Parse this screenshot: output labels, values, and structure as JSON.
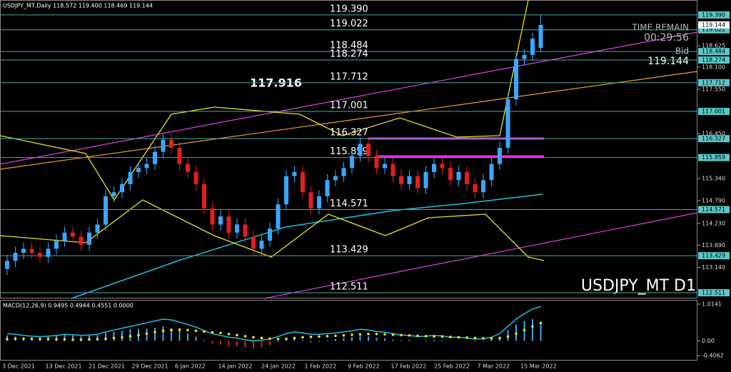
{
  "header": "USDJPY_MT,Daily  118.572 119.400 118.469 119.144",
  "price_scale": {
    "ylim": [
      112.37,
      119.76
    ],
    "ticks": [
      118.625,
      118.1,
      117.55,
      116.45,
      115.34,
      114.79,
      114.23,
      113.69,
      113.14
    ],
    "tick_labels": [
      "118.625",
      "118.100",
      "117.550",
      "116.450",
      "115.340",
      "114.790",
      "114.230",
      "113.690",
      "113.140"
    ]
  },
  "levels": [
    {
      "value": 119.39,
      "label": "119.390"
    },
    {
      "value": 119.022,
      "label": "119.022"
    },
    {
      "value": 118.484,
      "label": "118.484"
    },
    {
      "value": 118.274,
      "label": "118.274"
    },
    {
      "value": 117.712,
      "label": "117.712"
    },
    {
      "value": 117.001,
      "label": "117.001"
    },
    {
      "value": 116.327,
      "label": "116.327"
    },
    {
      "value": 115.859,
      "label": "115.859"
    },
    {
      "value": 114.571,
      "label": "114.571"
    },
    {
      "value": 113.429,
      "label": "113.429"
    },
    {
      "value": 112.511,
      "label": "112.511"
    }
  ],
  "annotation": {
    "value": 117.916,
    "label": "117.916"
  },
  "info": {
    "time_remain": "TIME REMAIN",
    "timer": "00:29:56",
    "bid_label": "Bid",
    "bid": {
      "value": 119.144,
      "label": "119.144"
    }
  },
  "watermark": "USDJPY_MT D1",
  "candles": [
    [
      113.1,
      113.45,
      112.95,
      113.3
    ],
    [
      113.3,
      113.65,
      113.15,
      113.5
    ],
    [
      113.5,
      113.75,
      113.35,
      113.6
    ],
    [
      113.6,
      113.75,
      113.35,
      113.5
    ],
    [
      113.5,
      113.65,
      113.25,
      113.4
    ],
    [
      113.4,
      113.75,
      113.25,
      113.6
    ],
    [
      113.6,
      113.95,
      113.45,
      113.8
    ],
    [
      113.8,
      114.15,
      113.65,
      114.0
    ],
    [
      114.0,
      114.15,
      113.75,
      113.9
    ],
    [
      113.9,
      114.05,
      113.55,
      113.7
    ],
    [
      113.7,
      114.15,
      113.55,
      114.0
    ],
    [
      114.0,
      114.35,
      113.85,
      114.2
    ],
    [
      114.2,
      115.05,
      114.05,
      114.9
    ],
    [
      114.9,
      115.15,
      114.75,
      115.0
    ],
    [
      115.0,
      115.35,
      114.85,
      115.2
    ],
    [
      115.2,
      115.65,
      115.05,
      115.5
    ],
    [
      115.5,
      115.75,
      115.35,
      115.6
    ],
    [
      115.6,
      115.85,
      115.45,
      115.7
    ],
    [
      115.7,
      116.15,
      115.55,
      116.0
    ],
    [
      116.0,
      116.45,
      115.85,
      116.3
    ],
    [
      116.3,
      116.45,
      115.95,
      116.1
    ],
    [
      116.1,
      116.25,
      115.55,
      115.7
    ],
    [
      115.7,
      115.85,
      115.35,
      115.5
    ],
    [
      115.5,
      115.65,
      115.05,
      115.2
    ],
    [
      115.2,
      115.35,
      114.45,
      114.6
    ],
    [
      114.6,
      114.75,
      114.05,
      114.2
    ],
    [
      114.2,
      114.55,
      114.05,
      114.4
    ],
    [
      114.4,
      114.55,
      113.85,
      114.0
    ],
    [
      114.0,
      114.35,
      113.85,
      114.2
    ],
    [
      114.2,
      114.35,
      113.75,
      113.9
    ],
    [
      113.9,
      114.05,
      113.45,
      113.6
    ],
    [
      113.6,
      113.95,
      113.45,
      113.8
    ],
    [
      113.8,
      114.25,
      113.65,
      114.1
    ],
    [
      114.1,
      114.85,
      113.95,
      114.7
    ],
    [
      114.7,
      115.55,
      114.55,
      115.4
    ],
    [
      115.4,
      115.65,
      115.25,
      115.5
    ],
    [
      115.5,
      115.65,
      114.85,
      115.0
    ],
    [
      115.0,
      115.15,
      114.45,
      114.6
    ],
    [
      114.6,
      115.05,
      114.45,
      114.9
    ],
    [
      114.9,
      115.45,
      114.75,
      115.3
    ],
    [
      115.3,
      115.55,
      115.15,
      115.4
    ],
    [
      115.4,
      115.75,
      115.25,
      115.6
    ],
    [
      115.6,
      116.05,
      115.45,
      115.9
    ],
    [
      115.9,
      116.35,
      115.75,
      116.2
    ],
    [
      116.2,
      116.35,
      115.75,
      115.9
    ],
    [
      115.9,
      116.05,
      115.45,
      115.6
    ],
    [
      115.6,
      115.85,
      115.45,
      115.7
    ],
    [
      115.7,
      115.85,
      115.25,
      115.4
    ],
    [
      115.4,
      115.55,
      115.05,
      115.2
    ],
    [
      115.2,
      115.55,
      115.05,
      115.4
    ],
    [
      115.4,
      115.55,
      114.95,
      115.1
    ],
    [
      115.1,
      115.65,
      114.95,
      115.5
    ],
    [
      115.5,
      115.85,
      115.35,
      115.7
    ],
    [
      115.7,
      115.85,
      115.45,
      115.6
    ],
    [
      115.6,
      115.75,
      115.15,
      115.3
    ],
    [
      115.3,
      115.65,
      115.15,
      115.5
    ],
    [
      115.5,
      115.65,
      115.05,
      115.2
    ],
    [
      115.2,
      115.35,
      114.85,
      115.0
    ],
    [
      115.0,
      115.45,
      114.85,
      115.3
    ],
    [
      115.3,
      115.85,
      115.15,
      115.7
    ],
    [
      115.7,
      116.25,
      115.55,
      116.1
    ],
    [
      116.1,
      117.45,
      115.95,
      117.3
    ],
    [
      117.3,
      118.45,
      117.15,
      118.3
    ],
    [
      118.3,
      118.55,
      118.15,
      118.4
    ],
    [
      118.4,
      118.95,
      118.25,
      118.8
    ],
    [
      118.572,
      119.4,
      118.469,
      119.144
    ]
  ],
  "macd": {
    "label": "MACD(12,26,9) 0.9495 0.4944 0.4551 0.0000",
    "ylim": [
      -0.544,
      1.132
    ],
    "yticks": [
      1.0141,
      {
        "value": 0,
        "label": "0.00"
      },
      -0.4062
    ],
    "histogram": [
      0.15,
      0.12,
      0.1,
      0.08,
      0.1,
      0.12,
      0.15,
      0.18,
      0.15,
      0.12,
      0.14,
      0.16,
      0.22,
      0.25,
      0.28,
      0.32,
      0.33,
      0.34,
      0.36,
      0.4,
      0.35,
      0.28,
      0.2,
      0.12,
      0.02,
      -0.08,
      -0.1,
      -0.15,
      -0.14,
      -0.18,
      -0.2,
      -0.18,
      -0.12,
      -0.04,
      0.05,
      0.08,
      0.02,
      -0.05,
      -0.03,
      0.02,
      0.05,
      0.08,
      0.1,
      0.14,
      0.12,
      0.08,
      0.07,
      0.04,
      0.02,
      0.03,
      0.0,
      0.02,
      0.03,
      0.02,
      -0.01,
      0.0,
      -0.02,
      -0.04,
      -0.02,
      0.03,
      0.1,
      0.3,
      0.45,
      0.55,
      0.6,
      0.4551
    ],
    "line": [
      0.2,
      0.18,
      0.15,
      0.13,
      0.12,
      0.13,
      0.15,
      0.18,
      0.17,
      0.15,
      0.16,
      0.18,
      0.25,
      0.3,
      0.35,
      0.4,
      0.45,
      0.5,
      0.55,
      0.6,
      0.58,
      0.52,
      0.45,
      0.38,
      0.28,
      0.2,
      0.15,
      0.1,
      0.08,
      0.03,
      0.0,
      0.02,
      0.05,
      0.12,
      0.2,
      0.25,
      0.22,
      0.18,
      0.18,
      0.2,
      0.22,
      0.25,
      0.28,
      0.32,
      0.3,
      0.26,
      0.24,
      0.2,
      0.16,
      0.15,
      0.12,
      0.13,
      0.15,
      0.14,
      0.1,
      0.1,
      0.08,
      0.05,
      0.06,
      0.1,
      0.2,
      0.4,
      0.6,
      0.75,
      0.88,
      0.9495
    ],
    "signal": [
      0.05,
      0.06,
      0.06,
      0.06,
      0.05,
      0.05,
      0.04,
      0.04,
      0.03,
      0.03,
      0.04,
      0.05,
      0.06,
      0.08,
      0.1,
      0.13,
      0.16,
      0.2,
      0.24,
      0.28,
      0.3,
      0.31,
      0.3,
      0.28,
      0.26,
      0.24,
      0.22,
      0.19,
      0.16,
      0.13,
      0.1,
      0.08,
      0.06,
      0.05,
      0.06,
      0.08,
      0.1,
      0.11,
      0.12,
      0.13,
      0.14,
      0.15,
      0.17,
      0.18,
      0.19,
      0.19,
      0.18,
      0.17,
      0.16,
      0.15,
      0.14,
      0.13,
      0.12,
      0.12,
      0.11,
      0.1,
      0.09,
      0.08,
      0.07,
      0.07,
      0.08,
      0.12,
      0.2,
      0.3,
      0.4,
      0.4944
    ]
  },
  "dates": [
    "3 Dec 2021",
    "13 Dec 2021",
    "21 Dec 2021",
    "29 Dec 2021",
    "6 Jan 2022",
    "14 Jan 2022",
    "24 Jan 2022",
    "1 Feb 2022",
    "9 Feb 2022",
    "17 Feb 2022",
    "25 Feb 2022",
    "7 Mar 2022",
    "15 Mar 2022"
  ]
}
